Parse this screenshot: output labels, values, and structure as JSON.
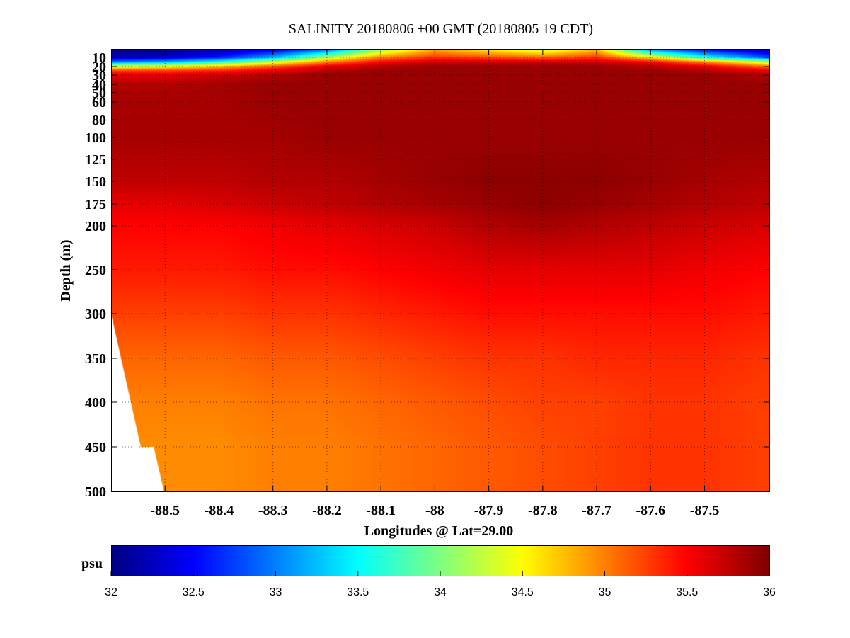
{
  "chart_data": {
    "type": "heatmap",
    "title": "SALINITY 20180806 +00 GMT (20180805 19 CDT)",
    "xlabel": "Longitudes @ Lat=29.00",
    "ylabel": "Depth (m)",
    "xlim": [
      -88.6,
      -87.38
    ],
    "ylim": [
      500,
      0
    ],
    "x_ticks": [
      -88.5,
      -88.4,
      -88.3,
      -88.2,
      -88.1,
      -88,
      -87.9,
      -87.8,
      -87.7,
      -87.6,
      -87.5
    ],
    "x_tick_labels": [
      "-88.5",
      "-88.4",
      "-88.3",
      "-88.2",
      "-88.1",
      "-88",
      "-87.9",
      "-87.8",
      "-87.7",
      "-87.6",
      "-87.5"
    ],
    "y_ticks": [
      10,
      20,
      30,
      40,
      50,
      60,
      80,
      100,
      125,
      150,
      175,
      200,
      250,
      300,
      350,
      400,
      450,
      500
    ],
    "y_tick_labels": [
      "10",
      "20",
      "30",
      "40",
      "50",
      "60",
      "80",
      "100",
      "125",
      "150",
      "175",
      "200",
      "250",
      "300",
      "350",
      "400",
      "450",
      "500"
    ],
    "grid": true,
    "colorbar": {
      "label": "psu",
      "min": 32,
      "max": 36,
      "ticks": [
        32,
        32.5,
        33,
        33.5,
        34,
        34.5,
        35,
        35.5,
        36
      ],
      "tick_labels": [
        "32",
        "32.5",
        "33",
        "33.5",
        "34",
        "34.5",
        "35",
        "35.5",
        "36"
      ],
      "colormap": "jet",
      "placement": "bottom"
    },
    "bathymetry_mask": [
      {
        "lon": -88.6,
        "depth": 300
      },
      {
        "lon": -88.545,
        "depth": 450
      },
      {
        "lon": -88.521,
        "depth": 450
      },
      {
        "lon": -88.502,
        "depth": 500
      }
    ],
    "field": {
      "lon": [
        -88.6,
        -88.5,
        -88.4,
        -88.3,
        -88.2,
        -88.1,
        -88.0,
        -87.9,
        -87.8,
        -87.7,
        -87.6,
        -87.5,
        -87.38
      ],
      "depth": [
        0,
        10,
        15,
        20,
        25,
        30,
        40,
        60,
        100,
        150,
        175,
        200,
        250,
        300,
        350,
        400,
        450,
        500
      ],
      "salinity": [
        [
          32.0,
          32.0,
          32.1,
          32.3,
          32.8,
          34.0,
          34.8,
          34.5,
          34.2,
          34.7,
          32.9,
          32.4,
          32.1
        ],
        [
          32.2,
          32.3,
          32.6,
          33.2,
          34.2,
          35.0,
          35.3,
          35.2,
          35.1,
          35.3,
          34.6,
          33.6,
          32.8
        ],
        [
          33.0,
          33.2,
          33.6,
          34.3,
          35.0,
          35.5,
          35.7,
          35.7,
          35.7,
          35.7,
          35.5,
          35.0,
          34.2
        ],
        [
          34.4,
          34.5,
          34.8,
          35.2,
          35.6,
          35.8,
          35.9,
          35.9,
          35.9,
          35.9,
          35.8,
          35.6,
          35.1
        ],
        [
          35.3,
          35.3,
          35.4,
          35.6,
          35.8,
          35.9,
          35.9,
          35.9,
          35.9,
          35.9,
          35.9,
          35.8,
          35.6
        ],
        [
          35.6,
          35.6,
          35.7,
          35.8,
          35.9,
          35.9,
          35.9,
          35.9,
          35.9,
          35.9,
          35.9,
          35.9,
          35.8
        ],
        [
          35.8,
          35.8,
          35.85,
          35.9,
          35.9,
          35.9,
          35.9,
          35.9,
          35.9,
          35.9,
          35.9,
          35.9,
          35.9
        ],
        [
          35.85,
          35.85,
          35.85,
          35.9,
          35.9,
          35.9,
          35.9,
          35.9,
          35.9,
          35.9,
          35.9,
          35.9,
          35.9
        ],
        [
          35.85,
          35.85,
          35.85,
          35.85,
          35.9,
          35.9,
          35.9,
          35.9,
          35.9,
          35.9,
          35.9,
          35.9,
          35.9
        ],
        [
          35.75,
          35.75,
          35.75,
          35.8,
          35.8,
          35.85,
          35.9,
          35.95,
          35.95,
          35.95,
          35.9,
          35.85,
          35.8
        ],
        [
          35.6,
          35.6,
          35.65,
          35.7,
          35.75,
          35.8,
          35.85,
          35.9,
          35.95,
          35.9,
          35.85,
          35.8,
          35.75
        ],
        [
          35.5,
          35.5,
          35.5,
          35.55,
          35.6,
          35.65,
          35.7,
          35.8,
          35.85,
          35.8,
          35.75,
          35.7,
          35.65
        ],
        [
          35.4,
          35.4,
          35.4,
          35.45,
          35.45,
          35.5,
          35.55,
          35.6,
          35.6,
          35.6,
          35.6,
          35.55,
          35.5
        ],
        [
          35.25,
          35.25,
          35.25,
          35.3,
          35.3,
          35.35,
          35.4,
          35.45,
          35.45,
          35.45,
          35.45,
          35.45,
          35.4
        ],
        [
          35.1,
          35.1,
          35.1,
          35.15,
          35.15,
          35.2,
          35.25,
          35.3,
          35.3,
          35.35,
          35.35,
          35.35,
          35.3
        ],
        [
          35.0,
          35.0,
          35.0,
          35.05,
          35.05,
          35.1,
          35.15,
          35.2,
          35.25,
          35.25,
          35.3,
          35.3,
          35.25
        ],
        [
          34.95,
          34.95,
          34.95,
          35.0,
          35.0,
          35.05,
          35.1,
          35.15,
          35.2,
          35.25,
          35.3,
          35.3,
          35.25
        ],
        [
          34.95,
          34.95,
          34.95,
          35.0,
          35.0,
          35.05,
          35.1,
          35.15,
          35.2,
          35.25,
          35.3,
          35.3,
          35.25
        ]
      ]
    }
  }
}
